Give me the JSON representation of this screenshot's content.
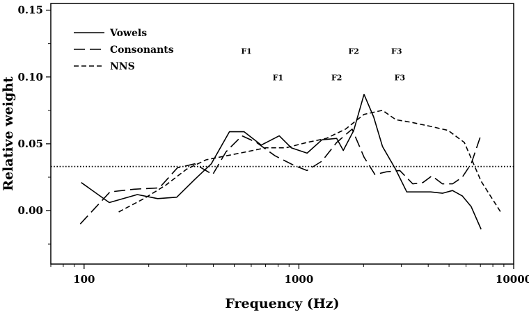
{
  "chart_data": {
    "type": "line",
    "xlabel": "Frequency (Hz)",
    "ylabel": "Relative weight",
    "x_scale": "log",
    "xlim": [
      70,
      10000
    ],
    "ylim": [
      -0.04,
      0.155
    ],
    "x_ticks": [
      100,
      1000,
      10000
    ],
    "x_tick_labels": [
      "100",
      "1000",
      "10000"
    ],
    "y_ticks": [
      0.0,
      0.05,
      0.1,
      0.15
    ],
    "y_tick_labels": [
      "0.00",
      "0.05",
      "0.10",
      "0.15"
    ],
    "grid": false,
    "legend": {
      "position": "top-left"
    },
    "reference_line": {
      "y": 0.033,
      "style": "dotted"
    },
    "series": [
      {
        "name": "Vowels",
        "dash": "solid",
        "x": [
          97,
          131,
          177,
          220,
          270,
          326,
          391,
          475,
          556,
          668,
          810,
          922,
          1092,
          1280,
          1500,
          1610,
          1800,
          2010,
          2230,
          2450,
          2820,
          3180,
          3600,
          4110,
          4660,
          5190,
          5760,
          6340,
          7050
        ],
        "y": [
          0.021,
          0.006,
          0.012,
          0.009,
          0.01,
          0.023,
          0.035,
          0.059,
          0.059,
          0.049,
          0.056,
          0.047,
          0.043,
          0.053,
          0.054,
          0.045,
          0.06,
          0.087,
          0.07,
          0.048,
          0.031,
          0.014,
          0.014,
          0.014,
          0.013,
          0.015,
          0.011,
          0.003,
          -0.014
        ]
      },
      {
        "name": "Consonants",
        "dash": "long",
        "x": [
          96,
          132,
          171,
          224,
          272,
          327,
          397,
          458,
          543,
          635,
          774,
          945,
          1090,
          1280,
          1500,
          1770,
          2010,
          2260,
          2550,
          2950,
          3390,
          3780,
          4160,
          4660,
          5190,
          5760,
          6340,
          7050
        ],
        "y": [
          -0.01,
          0.014,
          0.016,
          0.017,
          0.032,
          0.035,
          0.027,
          0.044,
          0.056,
          0.051,
          0.041,
          0.034,
          0.03,
          0.037,
          0.051,
          0.061,
          0.04,
          0.027,
          0.029,
          0.03,
          0.02,
          0.021,
          0.026,
          0.02,
          0.02,
          0.025,
          0.035,
          0.057
        ]
      },
      {
        "name": "NNS",
        "dash": "short",
        "x": [
          145,
          190,
          240,
          300,
          370,
          460,
          570,
          700,
          870,
          1090,
          1340,
          1650,
          2010,
          2450,
          2830,
          3360,
          4110,
          4950,
          5890,
          7050,
          8690
        ],
        "y": [
          -0.001,
          0.009,
          0.019,
          0.031,
          0.038,
          0.041,
          0.044,
          0.047,
          0.047,
          0.051,
          0.054,
          0.061,
          0.072,
          0.075,
          0.068,
          0.066,
          0.063,
          0.06,
          0.051,
          0.022,
          -0.001
        ]
      }
    ],
    "annotations": [
      {
        "text": "F1",
        "x": 570,
        "y": 0.1195
      },
      {
        "text": "F2",
        "x": 1800,
        "y": 0.1195
      },
      {
        "text": "F3",
        "x": 2850,
        "y": 0.1195
      },
      {
        "text": "F1",
        "x": 800,
        "y": 0.0995
      },
      {
        "text": "F2",
        "x": 1500,
        "y": 0.0995
      },
      {
        "text": "F3",
        "x": 2950,
        "y": 0.0995
      }
    ]
  }
}
